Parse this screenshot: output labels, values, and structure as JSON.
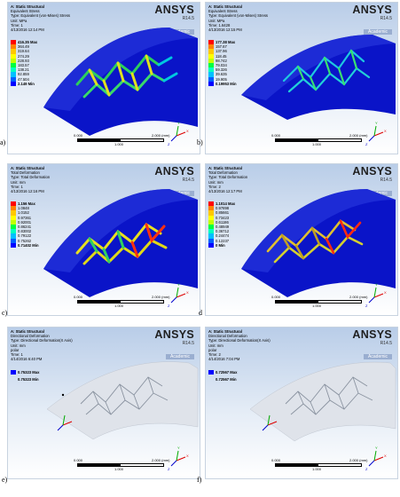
{
  "brand": {
    "name": "ANSYS",
    "release": "R14.5",
    "edition": "Academic"
  },
  "panels": [
    {
      "caption": "a)",
      "lines": [
        "A: Static Structural",
        "Equivalent Stress",
        "Type: Equivalent (von-Mises) Stress",
        "Unit: MPa",
        "Time: 1",
        "4/13/2016 12:14 PM"
      ],
      "legend": [
        {
          "v": "416.35 Max",
          "c": "#ff0000"
        },
        {
          "v": "364.49",
          "c": "#ff8000"
        },
        {
          "v": "319.64",
          "c": "#ffc800"
        },
        {
          "v": "274.29",
          "c": "#ffff00"
        },
        {
          "v": "228.93",
          "c": "#c0ff00"
        },
        {
          "v": "183.57",
          "c": "#00ff40"
        },
        {
          "v": "138.21",
          "c": "#00ffc0"
        },
        {
          "v": "92.859",
          "c": "#00c0ff"
        },
        {
          "v": "47.504",
          "c": "#0060ff"
        },
        {
          "v": "2.149 Min",
          "c": "#0000ff"
        }
      ]
    },
    {
      "caption": "b)",
      "lines": [
        "A: Static Structural",
        "Equivalent Stress",
        "Type: Equivalent (von-Mises) Stress",
        "Unit: MPa",
        "Time: 1.6428",
        "4/13/2016 12:15 PM"
      ],
      "legend": [
        {
          "v": "177.38 Max",
          "c": "#ff0000"
        },
        {
          "v": "157.67",
          "c": "#ff8000"
        },
        {
          "v": "137.96",
          "c": "#ffc800"
        },
        {
          "v": "118.45",
          "c": "#ffff00"
        },
        {
          "v": "98.742",
          "c": "#c0ff00"
        },
        {
          "v": "79.034",
          "c": "#00ff40"
        },
        {
          "v": "59.326",
          "c": "#00ffc0"
        },
        {
          "v": "39.635",
          "c": "#00c0ff"
        },
        {
          "v": "19.905",
          "c": "#0060ff"
        },
        {
          "v": "0.19953 Min",
          "c": "#0000ff"
        }
      ]
    },
    {
      "caption": "c)",
      "lines": [
        "A: Static Structural",
        "Total Deformation",
        "Type: Total Deformation",
        "Unit: mm",
        "Time: 1",
        "4/13/2016 12:16 PM"
      ],
      "legend": [
        {
          "v": "1.156 Max",
          "c": "#ff0000"
        },
        {
          "v": "1.0848",
          "c": "#ff8000"
        },
        {
          "v": "1.0152",
          "c": "#ffc800"
        },
        {
          "v": "0.97361",
          "c": "#ffff00"
        },
        {
          "v": "0.92001",
          "c": "#c0ff00"
        },
        {
          "v": "0.86241",
          "c": "#00ff40"
        },
        {
          "v": "0.83002",
          "c": "#00ffc0"
        },
        {
          "v": "0.79122",
          "c": "#00c0ff"
        },
        {
          "v": "0.75262",
          "c": "#0060ff"
        },
        {
          "v": "0.71402 Min",
          "c": "#0000ff"
        }
      ]
    },
    {
      "caption": "d",
      "lines": [
        "A: Static Structural",
        "Total Deformation",
        "Type: Total Deformation",
        "Unit: mm",
        "Time: 2",
        "4/13/2016 12:17 PM"
      ],
      "legend": [
        {
          "v": "1.1014 Max",
          "c": "#ff0000"
        },
        {
          "v": "0.97898",
          "c": "#ff8000"
        },
        {
          "v": "0.85661",
          "c": "#ffc800"
        },
        {
          "v": "0.73423",
          "c": "#ffff00"
        },
        {
          "v": "0.61186",
          "c": "#c0ff00"
        },
        {
          "v": "0.48949",
          "c": "#00ff40"
        },
        {
          "v": "0.36712",
          "c": "#00ffc0"
        },
        {
          "v": "0.24474",
          "c": "#00c0ff"
        },
        {
          "v": "0.12237",
          "c": "#0060ff"
        },
        {
          "v": "0 Min",
          "c": "#0000ff"
        }
      ]
    },
    {
      "caption": "e)",
      "lines": [
        "A: Static Structural",
        "Directional Deformation",
        "Type: Directional Deformation(X Axis)",
        "Unit: mm",
        "polar",
        "Time: 1",
        "4/14/2016 6:40 PM"
      ],
      "minmax": [
        "0.75323 Max",
        "0.75323 Min"
      ]
    },
    {
      "caption": "f)",
      "lines": [
        "A: Static Structural",
        "Directional Deformation",
        "Type: Directional Deformation(X Axis)",
        "Unit: mm",
        "polar",
        "Time: 2",
        "4/14/2016 7:04 PM"
      ],
      "minmax": [
        "0.72567 Max",
        "0.72567 Min"
      ]
    }
  ],
  "scale": {
    "left": "0.000",
    "mid": "1.000",
    "right": "2.000 (mm)"
  },
  "axes": {
    "x": "X",
    "y": "Y",
    "z": "Z"
  }
}
